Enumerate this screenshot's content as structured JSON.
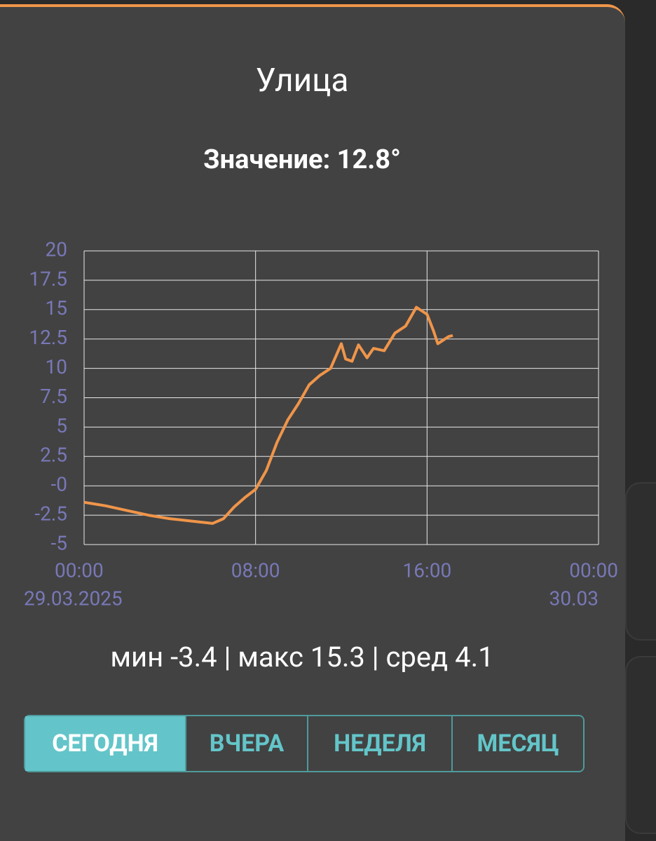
{
  "header": {
    "title": "Улица",
    "value": "Значение: 12.8°"
  },
  "chart_data": {
    "type": "line",
    "x": [
      0,
      1,
      2,
      3,
      4,
      5,
      6,
      6.5,
      7,
      7.5,
      8,
      8.5,
      9,
      9.5,
      10,
      10.5,
      11,
      11.5,
      12,
      12.2,
      12.5,
      12.8,
      13.2,
      13.5,
      14,
      14.5,
      15,
      15.5,
      16,
      16.3,
      16.5,
      17,
      17.2
    ],
    "series": [
      {
        "color": "#f0954a",
        "values": [
          -1.4,
          -1.7,
          -2.1,
          -2.5,
          -2.8,
          -3.0,
          -3.2,
          -2.8,
          -1.8,
          -1.0,
          -0.3,
          1.3,
          3.7,
          5.6,
          7.0,
          8.6,
          9.4,
          10.0,
          12.1,
          10.8,
          10.6,
          12.0,
          10.9,
          11.7,
          11.5,
          13.0,
          13.6,
          15.2,
          14.6,
          13.2,
          12.1,
          12.7,
          12.8
        ]
      }
    ],
    "xlim": [
      0,
      24
    ],
    "xticks": [
      {
        "value": 0,
        "label": "00:00"
      },
      {
        "value": 8,
        "label": "08:00"
      },
      {
        "value": 16,
        "label": "16:00"
      },
      {
        "value": 24,
        "label": "00:00"
      }
    ],
    "xtick_dates": [
      "29.03.2025",
      null,
      null,
      "30.03"
    ],
    "ylim": [
      -5,
      20
    ],
    "yticks": [
      -5,
      -2.5,
      {
        "value": 0,
        "label": "-0"
      },
      2.5,
      5,
      7.5,
      10,
      12.5,
      15,
      17.5,
      20
    ],
    "grid": true
  },
  "stats": "мин -3.4 | макс 15.3 | сред 4.1",
  "tabs": [
    "СЕГОДНЯ",
    "ВЧЕРА",
    "НЕДЕЛЯ",
    "МЕСЯЦ"
  ]
}
